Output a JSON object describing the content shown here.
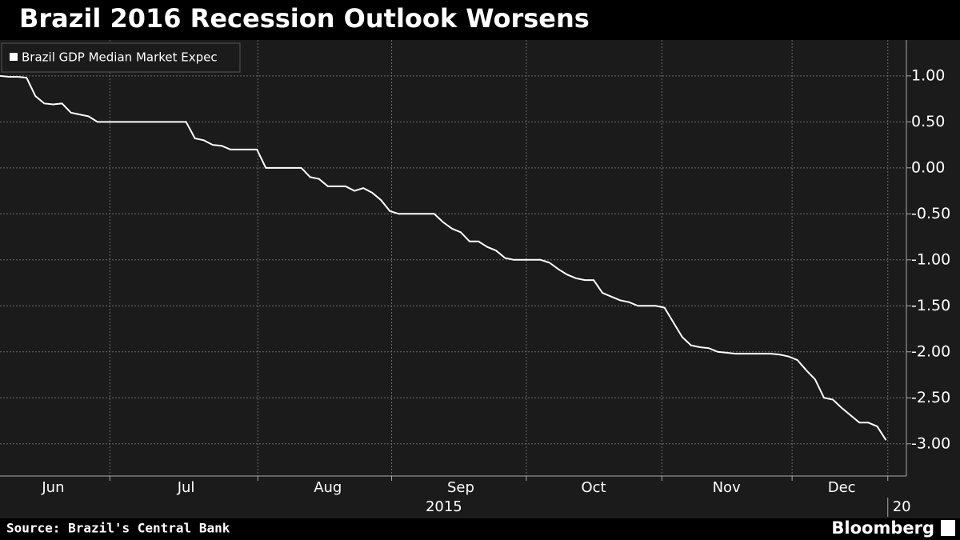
{
  "chart_data": {
    "type": "line",
    "title": "Brazil 2016 Recession Outlook Worsens",
    "source": "Source: Brazil's Central Bank",
    "brand": "Bloomberg",
    "xlabel": "2015",
    "next_year_label": "20",
    "categories": [
      null,
      null,
      null,
      null,
      null,
      null,
      "Jun",
      null,
      null,
      null,
      null,
      null,
      null,
      null,
      null,
      null,
      null,
      null,
      null,
      null,
      null,
      "Jul",
      null,
      null,
      null,
      null,
      null,
      null,
      null,
      null,
      null,
      null,
      null,
      null,
      null,
      null,
      null,
      "Aug",
      null,
      null,
      null,
      null,
      null,
      null,
      null,
      null,
      null,
      null,
      null,
      null,
      null,
      null,
      "Sep",
      null,
      null,
      null,
      null,
      null,
      null,
      null,
      null,
      null,
      null,
      null,
      null,
      null,
      null,
      "Oct",
      null,
      null,
      null,
      null,
      null,
      null,
      null,
      null,
      null,
      null,
      null,
      null,
      null,
      null,
      "Nov",
      null,
      null,
      null,
      null,
      null,
      null,
      null,
      null,
      null,
      null,
      null,
      null,
      "Dec",
      null,
      null,
      null,
      null,
      null
    ],
    "series": [
      {
        "name": "Brazil GDP Median Market Expec",
        "color": "#ffffff",
        "values": [
          1.0,
          0.99,
          0.99,
          0.98,
          0.78,
          0.7,
          0.69,
          0.7,
          0.6,
          0.58,
          0.56,
          0.5,
          0.5,
          0.5,
          0.5,
          0.5,
          0.5,
          0.5,
          0.5,
          0.5,
          0.5,
          0.5,
          0.32,
          0.3,
          0.25,
          0.24,
          0.2,
          0.2,
          0.2,
          0.2,
          0.0,
          0.0,
          0.0,
          0.0,
          0.0,
          -0.1,
          -0.12,
          -0.2,
          -0.2,
          -0.2,
          -0.25,
          -0.22,
          -0.27,
          -0.35,
          -0.47,
          -0.5,
          -0.5,
          -0.5,
          -0.5,
          -0.5,
          -0.59,
          -0.66,
          -0.7,
          -0.8,
          -0.8,
          -0.86,
          -0.9,
          -0.98,
          -1.0,
          -1.0,
          -1.0,
          -1.0,
          -1.03,
          -1.1,
          -1.16,
          -1.2,
          -1.22,
          -1.22,
          -1.36,
          -1.4,
          -1.44,
          -1.46,
          -1.5,
          -1.5,
          -1.5,
          -1.52,
          -1.68,
          -1.84,
          -1.93,
          -1.95,
          -1.96,
          -2.0,
          -2.01,
          -2.02,
          -2.02,
          -2.02,
          -2.02,
          -2.02,
          -2.03,
          -2.05,
          -2.09,
          -2.2,
          -2.3,
          -2.5,
          -2.52,
          -2.61,
          -2.69,
          -2.77,
          -2.77,
          -2.81,
          -2.96
        ]
      }
    ],
    "xlim": [
      0,
      102.3
    ],
    "xticks": [
      12.4,
      29.1,
      44.2,
      59.4,
      74.7,
      89.4,
      100.2
    ],
    "ylim": [
      -3.35,
      1.39
    ],
    "yticks": [
      {
        "value": 1,
        "label": "1.00"
      },
      {
        "value": 0.5,
        "label": "0.50"
      },
      {
        "value": 0,
        "label": "0.00"
      },
      {
        "value": -0.5,
        "label": "-0.50"
      },
      {
        "value": -1,
        "label": "-1.00"
      },
      {
        "value": -1.5,
        "label": "-1.50"
      },
      {
        "value": -2,
        "label": "-2.00"
      },
      {
        "value": -2.5,
        "label": "-2.50"
      },
      {
        "value": -3,
        "label": "-3.00"
      }
    ],
    "grid": true,
    "legend": "top-left"
  }
}
